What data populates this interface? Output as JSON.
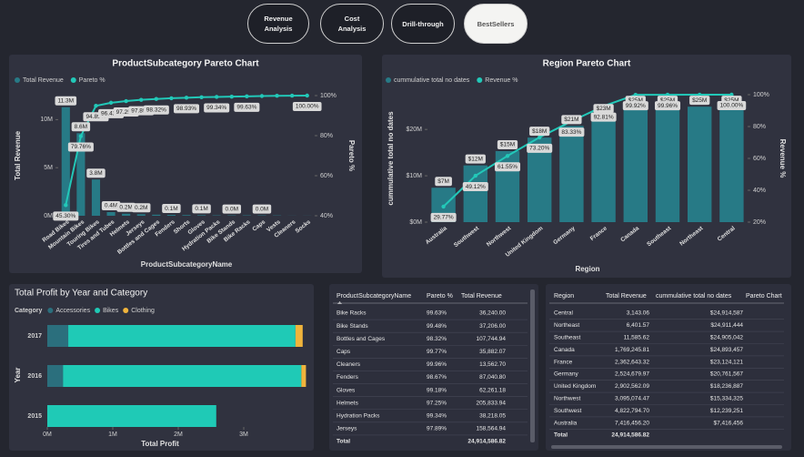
{
  "nav": [
    "Revenue Analysis",
    "Cost Analysis",
    "Drill-through",
    "BestSellers"
  ],
  "chart_data": [
    {
      "type": "combo",
      "title": "ProductSubcategory Pareto Chart",
      "x_label": "ProductSubcategoryName",
      "y_label": "Total Revenue",
      "y2_label": "Pareto %",
      "categories": [
        "Road Bikes",
        "Mountain Bikes",
        "Touring Bikes",
        "Tires and Tubes",
        "Helmets",
        "Jerseys",
        "Bottles and Cages",
        "Fenders",
        "Shorts",
        "Gloves",
        "Hydration Packs",
        "Bike Stands",
        "Bike Racks",
        "Caps",
        "Vests",
        "Cleaners",
        "Socks"
      ],
      "series": [
        {
          "name": "Total Revenue",
          "type": "bar",
          "color": "#277a86",
          "values": [
            11.29,
            8.59,
            3.77,
            0.38,
            0.21,
            0.16,
            0.11,
            0.09,
            0.07,
            0.06,
            0.04,
            0.04,
            0.04,
            0.04,
            0.03,
            0.01,
            0.01
          ],
          "value_labels": [
            "11.3M",
            "8.6M",
            "3.8M",
            "0.4M",
            "0.2M",
            "0.2M",
            null,
            "0.1M",
            null,
            "0.1M",
            null,
            "0.0M",
            null,
            "0.0M",
            null,
            null,
            null
          ]
        },
        {
          "name": "Pareto %",
          "type": "line",
          "axis": "y2",
          "color": "#22c8b8",
          "values": [
            45.3,
            79.76,
            94.89,
            96.42,
            97.25,
            97.89,
            98.32,
            98.67,
            98.93,
            99.18,
            99.34,
            99.48,
            99.63,
            99.77,
            99.9,
            99.96,
            100.0
          ],
          "value_labels": [
            "45.30%",
            "79.76%",
            "94.89%",
            "96.42%",
            "97.25%",
            "97.89%",
            "98.32%",
            null,
            "98.93%",
            null,
            "99.34%",
            null,
            "99.63%",
            null,
            null,
            null,
            "100.00%"
          ]
        }
      ],
      "ylim": [
        0,
        12.5
      ],
      "yticks": [
        {
          "value": 0,
          "label": "0M"
        },
        {
          "value": 5,
          "label": "5M"
        },
        {
          "value": 10,
          "label": "10M"
        }
      ],
      "y2lim": [
        40,
        100
      ],
      "y2ticks": [
        {
          "value": 40,
          "label": "40%"
        },
        {
          "value": 60,
          "label": "60%"
        },
        {
          "value": 80,
          "label": "80%"
        },
        {
          "value": 100,
          "label": "100%"
        }
      ]
    },
    {
      "type": "combo",
      "title": "Region Pareto Chart",
      "x_label": "Region",
      "y_label": "cummulative total no dates",
      "y2_label": "Revenue %",
      "categories": [
        "Australia",
        "Southwest",
        "Northwest",
        "United Kingdom",
        "Germany",
        "France",
        "Canada",
        "Southeast",
        "Northeast",
        "Central"
      ],
      "series": [
        {
          "name": "cummulative total no dates",
          "type": "bar",
          "color": "#277a86",
          "values": [
            7.42,
            12.24,
            15.33,
            18.24,
            20.76,
            23.12,
            24.89,
            24.91,
            24.91,
            24.91
          ],
          "value_labels": [
            "$7M",
            "$12M",
            "$15M",
            "$18M",
            "$21M",
            "$23M",
            "$25M",
            "$25M",
            "$25M",
            "$25M"
          ]
        },
        {
          "name": "Revenue %",
          "type": "line",
          "axis": "y2",
          "color": "#22c8b8",
          "values": [
            29.77,
            49.12,
            61.55,
            73.2,
            83.33,
            92.81,
            99.92,
            99.96,
            99.99,
            100.0
          ],
          "value_labels": [
            "29.77%",
            "49.12%",
            "61.55%",
            "73.20%",
            "83.33%",
            "92.81%",
            "99.92%",
            "99.96%",
            null,
            "100.00%"
          ]
        }
      ],
      "ylim": [
        0,
        27.5
      ],
      "yticks": [
        {
          "value": 0,
          "label": "$0M"
        },
        {
          "value": 10,
          "label": "$10M"
        },
        {
          "value": 20,
          "label": "$20M"
        }
      ],
      "y2lim": [
        20,
        100
      ],
      "y2ticks": [
        {
          "value": 20,
          "label": "20%"
        },
        {
          "value": 40,
          "label": "40%"
        },
        {
          "value": 60,
          "label": "60%"
        },
        {
          "value": 80,
          "label": "80%"
        },
        {
          "value": 100,
          "label": "100%"
        }
      ]
    },
    {
      "type": "stacked-bar-horizontal",
      "title": "Total Profit by Year and Category",
      "x_label": "Total Profit",
      "y_label": "Year",
      "legend_title": "Category",
      "categories": [
        "2017",
        "2016",
        "2015"
      ],
      "series": [
        {
          "name": "Accessories",
          "color": "#2b6f7d",
          "values": [
            0.32,
            0.24,
            null
          ]
        },
        {
          "name": "Bikes",
          "color": "#1fcab6",
          "values": [
            3.47,
            3.64,
            2.58
          ]
        },
        {
          "name": "Clothing",
          "color": "#f0b43c",
          "values": [
            0.11,
            0.07,
            null
          ]
        }
      ],
      "xlim": [
        0,
        4
      ],
      "xticks": [
        {
          "value": 0,
          "label": "0M"
        },
        {
          "value": 1,
          "label": "1M"
        },
        {
          "value": 2,
          "label": "2M"
        },
        {
          "value": 3,
          "label": "3M"
        }
      ]
    }
  ],
  "tables": [
    {
      "columns": [
        "ProductSubcategoryName",
        "Pareto %",
        "Total Revenue"
      ],
      "rows": [
        [
          "Bike Racks",
          "99.63%",
          "36,240.00"
        ],
        [
          "Bike Stands",
          "99.48%",
          "37,206.00"
        ],
        [
          "Bottles and Cages",
          "98.32%",
          "107,744.94"
        ],
        [
          "Caps",
          "99.77%",
          "35,882.07"
        ],
        [
          "Cleaners",
          "99.96%",
          "13,562.70"
        ],
        [
          "Fenders",
          "98.67%",
          "87,040.80"
        ],
        [
          "Gloves",
          "99.18%",
          "62,261.18"
        ],
        [
          "Helmets",
          "97.25%",
          "205,833.94"
        ],
        [
          "Hydration Packs",
          "99.34%",
          "38,218.05"
        ],
        [
          "Jerseys",
          "97.89%",
          "158,564.94"
        ]
      ],
      "total": {
        "label": "Total",
        "total_revenue": "24,914,586.82"
      }
    },
    {
      "columns": [
        "Region",
        "Total Revenue",
        "cummulative total no dates",
        "Pareto Chart"
      ],
      "rows": [
        [
          "Central",
          "3,143.06",
          "$24,914,587"
        ],
        [
          "Northeast",
          "6,401.57",
          "$24,911,444"
        ],
        [
          "Southeast",
          "11,585.62",
          "$24,905,042"
        ],
        [
          "Canada",
          "1,769,245.81",
          "$24,893,457"
        ],
        [
          "France",
          "2,362,643.32",
          "$23,124,121"
        ],
        [
          "Germany",
          "2,524,679.97",
          "$20,761,567"
        ],
        [
          "United Kingdom",
          "2,902,562.09",
          "$18,236,887"
        ],
        [
          "Northwest",
          "3,095,074.47",
          "$15,334,325"
        ],
        [
          "Southwest",
          "4,822,794.70",
          "$12,239,251"
        ],
        [
          "Australia",
          "7,416,456.20",
          "$7,416,456"
        ]
      ],
      "total": {
        "label": "Total",
        "total_revenue": "24,914,586.82"
      }
    }
  ]
}
